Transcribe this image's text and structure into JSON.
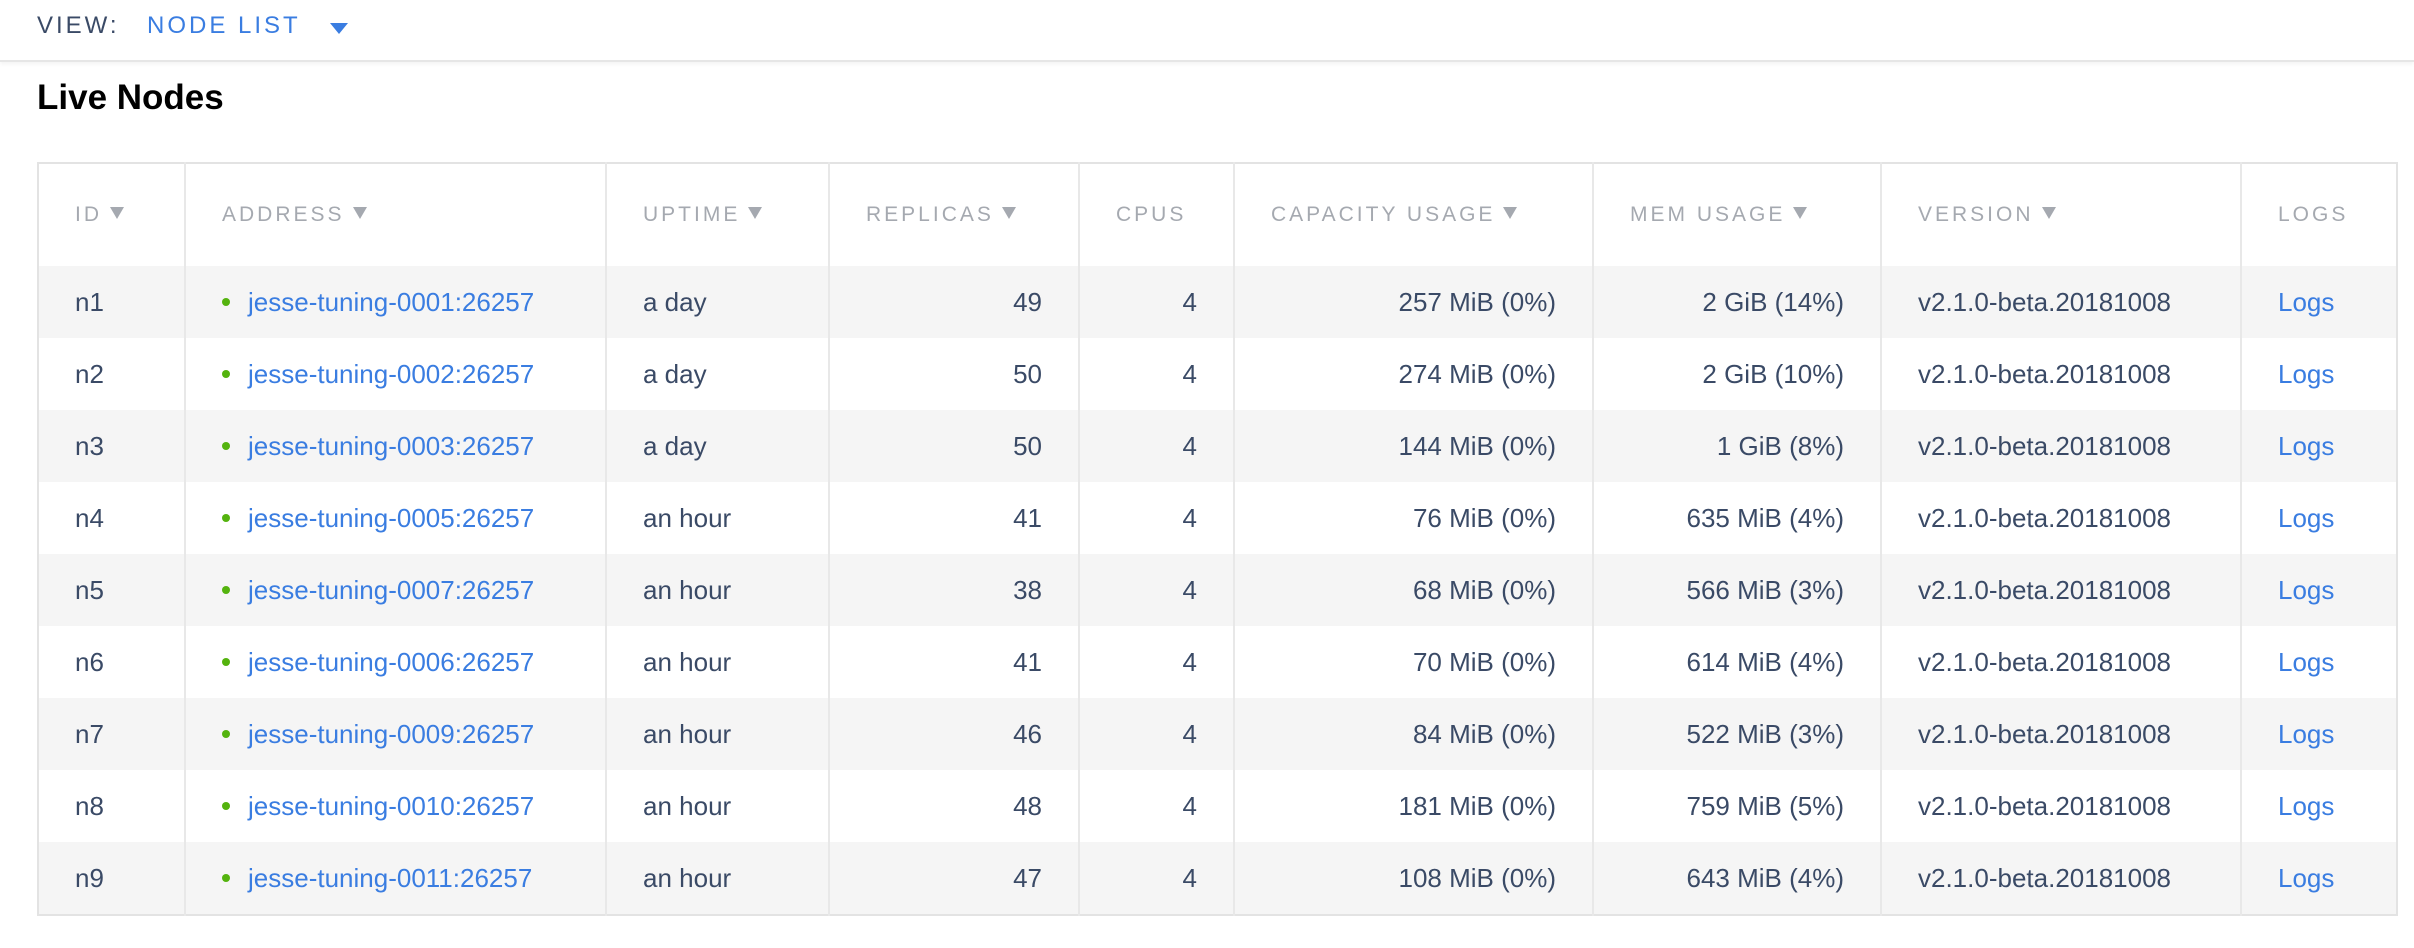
{
  "header": {
    "view_label": "VIEW:",
    "view_value": "NODE LIST"
  },
  "title": "Live Nodes",
  "table": {
    "columns": [
      "ID",
      "ADDRESS",
      "UPTIME",
      "REPLICAS",
      "CPUS",
      "CAPACITY USAGE",
      "MEM USAGE",
      "VERSION",
      "LOGS"
    ],
    "rows": [
      [
        "n1",
        "jesse-tuning-0001:26257",
        "a day",
        49,
        4,
        "257 MiB (0%)",
        "2 GiB (14%)",
        "v2.1.0-beta.20181008",
        "Logs"
      ],
      [
        "n2",
        "jesse-tuning-0002:26257",
        "a day",
        50,
        4,
        "274 MiB (0%)",
        "2 GiB (10%)",
        "v2.1.0-beta.20181008",
        "Logs"
      ],
      [
        "n3",
        "jesse-tuning-0003:26257",
        "a day",
        50,
        4,
        "144 MiB (0%)",
        "1 GiB (8%)",
        "v2.1.0-beta.20181008",
        "Logs"
      ],
      [
        "n4",
        "jesse-tuning-0005:26257",
        "an hour",
        41,
        4,
        "76 MiB (0%)",
        "635 MiB (4%)",
        "v2.1.0-beta.20181008",
        "Logs"
      ],
      [
        "n5",
        "jesse-tuning-0007:26257",
        "an hour",
        38,
        4,
        "68 MiB (0%)",
        "566 MiB (3%)",
        "v2.1.0-beta.20181008",
        "Logs"
      ],
      [
        "n6",
        "jesse-tuning-0006:26257",
        "an hour",
        41,
        4,
        "70 MiB (0%)",
        "614 MiB (4%)",
        "v2.1.0-beta.20181008",
        "Logs"
      ],
      [
        "n7",
        "jesse-tuning-0009:26257",
        "an hour",
        46,
        4,
        "84 MiB (0%)",
        "522 MiB (3%)",
        "v2.1.0-beta.20181008",
        "Logs"
      ],
      [
        "n8",
        "jesse-tuning-0010:26257",
        "an hour",
        48,
        4,
        "181 MiB (0%)",
        "759 MiB (5%)",
        "v2.1.0-beta.20181008",
        "Logs"
      ],
      [
        "n9",
        "jesse-tuning-0011:26257",
        "an hour",
        47,
        4,
        "108 MiB (0%)",
        "643 MiB (4%)",
        "v2.1.0-beta.20181008",
        "Logs"
      ]
    ]
  }
}
